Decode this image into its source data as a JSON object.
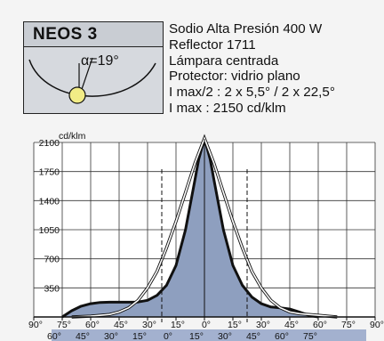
{
  "model": {
    "name": "NEOS 3",
    "alpha_label": "α=19°"
  },
  "specs": [
    "Sodio Alta Presión 400 W",
    "Reflector 1711",
    "Lámpara centrada",
    "Protector: vidrio plano",
    "I max/2 : 2 x 5,5° / 2 x 22,5°",
    "I max : 2150 cd/klm"
  ],
  "colors": {
    "fill_curve": "#8e9fbf",
    "bottom_band": "#a3b1cf",
    "lamp": "#f2ec86",
    "model_box": "#d6d9de"
  },
  "chart_data": {
    "type": "line",
    "title": "",
    "ylabel": "cd/klm",
    "xlabel": "",
    "ylim": [
      0,
      2100
    ],
    "y_ticks": [
      350,
      700,
      1050,
      1400,
      1750,
      2100
    ],
    "y_tick_labels": [
      "350",
      "700",
      "1050",
      "1400",
      "1750",
      "2100"
    ],
    "xlim": [
      -90,
      90
    ],
    "x_ticks_top": [
      -90,
      -75,
      -60,
      -45,
      -30,
      -15,
      0,
      15,
      30,
      45,
      60,
      75,
      90
    ],
    "x_tick_labels_top": [
      "90°",
      "75°",
      "60°",
      "45°",
      "30°",
      "15°",
      "0°",
      "15°",
      "30°",
      "45°",
      "60°",
      "75°",
      "90°"
    ],
    "x_tick_labels_bottom": [
      "60°",
      "45°",
      "30°",
      "15°",
      "0°",
      "15°",
      "30°",
      "45°",
      "60°",
      "75°"
    ],
    "grid": true,
    "series": [
      {
        "x": [
          -75,
          -70,
          -65,
          -60,
          -55,
          -50,
          -45,
          -40,
          -35,
          -30,
          -25,
          -20,
          -15,
          -10,
          -5,
          -3,
          0,
          3,
          5,
          10,
          15,
          20,
          25,
          30,
          35,
          40,
          45,
          50,
          55,
          60
        ],
        "values": [
          0,
          75,
          130,
          160,
          175,
          178,
          178,
          178,
          180,
          200,
          260,
          380,
          620,
          1050,
          1650,
          1900,
          2150,
          1900,
          1650,
          1050,
          620,
          380,
          240,
          160,
          120,
          110,
          95,
          60,
          20,
          0
        ]
      },
      {
        "x": [
          -70,
          -60,
          -50,
          -45,
          -40,
          -35,
          -30,
          -25,
          -20,
          -15,
          -10,
          -5,
          0,
          5,
          10,
          15,
          20,
          25,
          30,
          35,
          40,
          45,
          50,
          55,
          60,
          65,
          70
        ],
        "values": [
          0,
          10,
          30,
          60,
          110,
          200,
          350,
          550,
          830,
          1150,
          1500,
          1850,
          2150,
          1850,
          1500,
          1150,
          830,
          550,
          350,
          200,
          110,
          60,
          40,
          30,
          20,
          10,
          0
        ]
      }
    ]
  }
}
